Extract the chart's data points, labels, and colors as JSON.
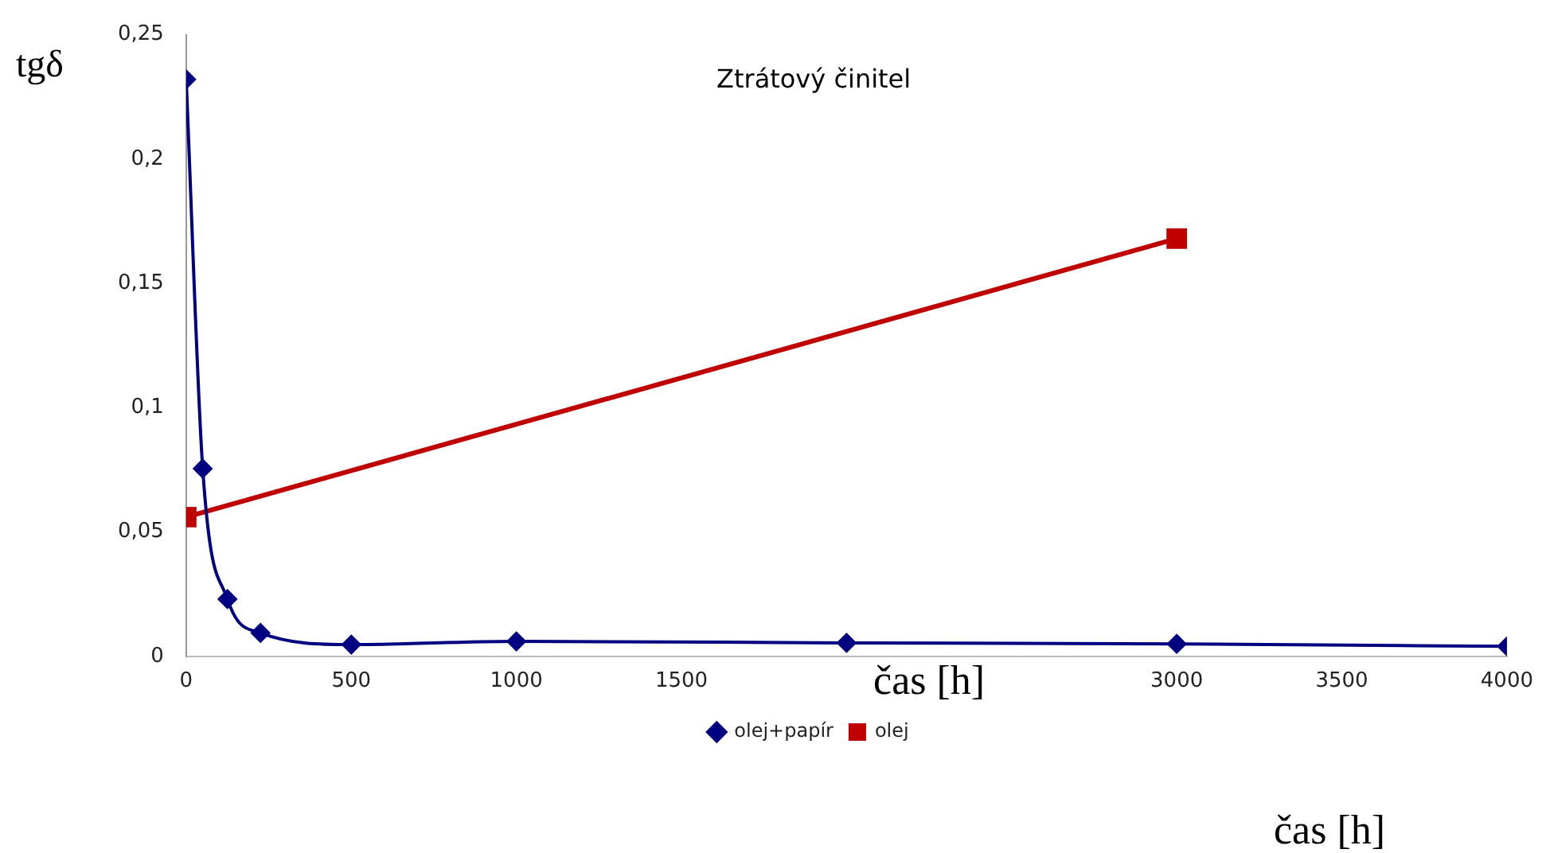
{
  "chart_data": {
    "type": "line",
    "title": "Ztrátový činitel",
    "ylabel": "tgδ",
    "xlabel": "čas [h]",
    "annotations": [
      "čas [h]"
    ],
    "xlim": [
      0,
      4000
    ],
    "xticks": [
      0,
      500,
      1000,
      1500,
      3000,
      3500,
      4000
    ],
    "ylim": [
      0,
      0.25
    ],
    "yticks": [
      {
        "value": 0,
        "label": "0"
      },
      {
        "value": 0.05,
        "label": "0,05"
      },
      {
        "value": 0.1,
        "label": "0,1"
      },
      {
        "value": 0.15,
        "label": "0,15"
      },
      {
        "value": 0.2,
        "label": "0,2"
      },
      {
        "value": 0.25,
        "label": "0,25"
      }
    ],
    "grid": false,
    "legend": "bottom",
    "series": [
      {
        "name": "olej+papír",
        "color": "#000080",
        "marker": "diamond",
        "x": [
          0,
          50,
          125,
          225,
          500,
          1000,
          2000,
          3000,
          4000
        ],
        "values": [
          0.232,
          0.0755,
          0.023,
          0.0094,
          0.0047,
          0.006,
          0.0054,
          0.005,
          0.004
        ]
      },
      {
        "name": "olej",
        "color": "#c00000",
        "marker": "square",
        "x": [
          0,
          3000
        ],
        "values": [
          0.056,
          0.168
        ]
      }
    ]
  }
}
